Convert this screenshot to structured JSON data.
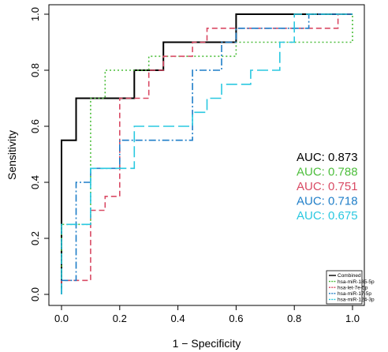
{
  "chart_data": {
    "type": "line",
    "xlabel": "1 − Specificity",
    "ylabel": "Sensitivity",
    "xlim": [
      0,
      1
    ],
    "ylim": [
      0,
      1
    ],
    "xticks": [
      "0.0",
      "0.2",
      "0.4",
      "0.6",
      "0.8",
      "1.0"
    ],
    "yticks": [
      "0.0",
      "0.2",
      "0.4",
      "0.6",
      "0.8",
      "1.0"
    ],
    "grid": false,
    "legend_position": "bottom-right",
    "series": [
      {
        "name": "Combined",
        "color": "#000000",
        "dash": "solid",
        "auc_label": "AUC: 0.873",
        "points": [
          [
            0,
            0
          ],
          [
            0,
            0.55
          ],
          [
            0.05,
            0.55
          ],
          [
            0.05,
            0.7
          ],
          [
            0.25,
            0.7
          ],
          [
            0.25,
            0.8
          ],
          [
            0.35,
            0.8
          ],
          [
            0.35,
            0.9
          ],
          [
            0.6,
            0.9
          ],
          [
            0.6,
            1.0
          ],
          [
            1.0,
            1.0
          ]
        ]
      },
      {
        "name": "hsa-miR-185-5p",
        "color": "#4dbe3c",
        "dash": "dotted",
        "auc_label": "AUC: 0.788",
        "points": [
          [
            0,
            0
          ],
          [
            0,
            0.25
          ],
          [
            0.1,
            0.25
          ],
          [
            0.1,
            0.7
          ],
          [
            0.15,
            0.7
          ],
          [
            0.15,
            0.8
          ],
          [
            0.3,
            0.8
          ],
          [
            0.3,
            0.85
          ],
          [
            0.6,
            0.85
          ],
          [
            0.6,
            0.9
          ],
          [
            1.0,
            0.9
          ],
          [
            1.0,
            1.0
          ]
        ]
      },
      {
        "name": "hsa-let-7e-5p",
        "color": "#d94a64",
        "dash": "dashed",
        "auc_label": "AUC: 0.751",
        "points": [
          [
            0,
            0
          ],
          [
            0,
            0.05
          ],
          [
            0.1,
            0.05
          ],
          [
            0.1,
            0.3
          ],
          [
            0.15,
            0.3
          ],
          [
            0.15,
            0.35
          ],
          [
            0.2,
            0.35
          ],
          [
            0.2,
            0.7
          ],
          [
            0.3,
            0.7
          ],
          [
            0.3,
            0.8
          ],
          [
            0.35,
            0.8
          ],
          [
            0.35,
            0.85
          ],
          [
            0.45,
            0.85
          ],
          [
            0.45,
            0.9
          ],
          [
            0.5,
            0.9
          ],
          [
            0.5,
            0.95
          ],
          [
            0.95,
            0.95
          ],
          [
            0.95,
            1.0
          ],
          [
            1.0,
            1.0
          ]
        ]
      },
      {
        "name": "hsa-miR-17-5p",
        "color": "#1f7ec8",
        "dash": "dashdot",
        "auc_label": "AUC: 0.718",
        "points": [
          [
            0,
            0
          ],
          [
            0,
            0.05
          ],
          [
            0.05,
            0.05
          ],
          [
            0.05,
            0.4
          ],
          [
            0.1,
            0.4
          ],
          [
            0.1,
            0.45
          ],
          [
            0.2,
            0.45
          ],
          [
            0.2,
            0.55
          ],
          [
            0.45,
            0.55
          ],
          [
            0.45,
            0.8
          ],
          [
            0.55,
            0.8
          ],
          [
            0.55,
            0.9
          ],
          [
            0.6,
            0.9
          ],
          [
            0.6,
            0.95
          ],
          [
            0.85,
            0.95
          ],
          [
            0.85,
            1.0
          ],
          [
            1.0,
            1.0
          ]
        ]
      },
      {
        "name": "hsa-miR-124-3p",
        "color": "#2ac8e0",
        "dash": "longdash",
        "auc_label": "AUC: 0.675",
        "points": [
          [
            0,
            0
          ],
          [
            0,
            0.25
          ],
          [
            0.1,
            0.25
          ],
          [
            0.1,
            0.45
          ],
          [
            0.25,
            0.45
          ],
          [
            0.25,
            0.6
          ],
          [
            0.45,
            0.6
          ],
          [
            0.45,
            0.65
          ],
          [
            0.5,
            0.65
          ],
          [
            0.5,
            0.7
          ],
          [
            0.55,
            0.7
          ],
          [
            0.55,
            0.75
          ],
          [
            0.65,
            0.75
          ],
          [
            0.65,
            0.8
          ],
          [
            0.75,
            0.8
          ],
          [
            0.75,
            0.9
          ],
          [
            0.8,
            0.9
          ],
          [
            0.8,
            1.0
          ],
          [
            1.0,
            1.0
          ]
        ]
      }
    ]
  }
}
